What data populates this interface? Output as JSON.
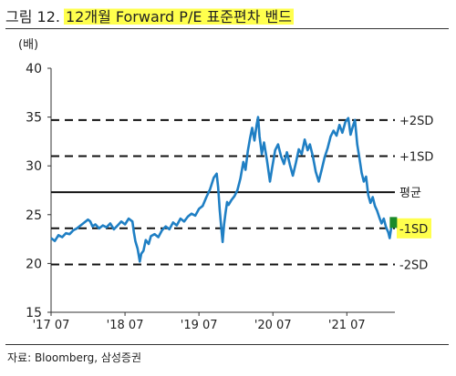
{
  "figure": {
    "prefix": "그림 12.",
    "title": "12개월 Forward P/E 표준편차 밴드",
    "unit": "(배)",
    "source": "자료: Bloomberg, 삼성증권"
  },
  "chart_data": {
    "type": "line",
    "title": "12개월 Forward P/E 표준편차 밴드",
    "ylabel": "(배)",
    "xlabel": "",
    "ylim": [
      15,
      40
    ],
    "yticks": [
      15,
      20,
      25,
      30,
      35,
      40
    ],
    "xlim": [
      2017.5,
      2022.15
    ],
    "xticks": [
      {
        "x": 2017.5,
        "label": "'17 07"
      },
      {
        "x": 2018.5,
        "label": "'18 07"
      },
      {
        "x": 2019.5,
        "label": "'19 07"
      },
      {
        "x": 2020.5,
        "label": "'20 07"
      },
      {
        "x": 2021.5,
        "label": "'21 07"
      }
    ],
    "grid": false,
    "series": [
      {
        "color": "#1f7fc4",
        "points": [
          [
            2017.5,
            22.6
          ],
          [
            2017.55,
            22.3
          ],
          [
            2017.6,
            22.9
          ],
          [
            2017.65,
            22.7
          ],
          [
            2017.7,
            23.1
          ],
          [
            2017.75,
            23.0
          ],
          [
            2017.8,
            23.4
          ],
          [
            2017.85,
            23.6
          ],
          [
            2017.9,
            23.9
          ],
          [
            2017.95,
            24.2
          ],
          [
            2018.0,
            24.5
          ],
          [
            2018.03,
            24.3
          ],
          [
            2018.06,
            23.8
          ],
          [
            2018.1,
            24.0
          ],
          [
            2018.15,
            23.6
          ],
          [
            2018.2,
            23.9
          ],
          [
            2018.25,
            23.7
          ],
          [
            2018.3,
            24.1
          ],
          [
            2018.35,
            23.5
          ],
          [
            2018.4,
            23.9
          ],
          [
            2018.45,
            24.3
          ],
          [
            2018.5,
            24.0
          ],
          [
            2018.55,
            24.6
          ],
          [
            2018.6,
            24.3
          ],
          [
            2018.62,
            23.2
          ],
          [
            2018.64,
            22.3
          ],
          [
            2018.67,
            21.5
          ],
          [
            2018.7,
            20.2
          ],
          [
            2018.72,
            21.0
          ],
          [
            2018.75,
            21.3
          ],
          [
            2018.78,
            22.4
          ],
          [
            2018.82,
            22.0
          ],
          [
            2018.85,
            22.8
          ],
          [
            2018.9,
            23.0
          ],
          [
            2018.95,
            22.7
          ],
          [
            2019.0,
            23.4
          ],
          [
            2019.05,
            23.8
          ],
          [
            2019.1,
            23.5
          ],
          [
            2019.15,
            24.2
          ],
          [
            2019.2,
            23.9
          ],
          [
            2019.25,
            24.6
          ],
          [
            2019.3,
            24.3
          ],
          [
            2019.35,
            24.8
          ],
          [
            2019.4,
            25.1
          ],
          [
            2019.45,
            24.9
          ],
          [
            2019.5,
            25.6
          ],
          [
            2019.55,
            25.9
          ],
          [
            2019.6,
            26.8
          ],
          [
            2019.65,
            27.6
          ],
          [
            2019.7,
            28.8
          ],
          [
            2019.74,
            29.2
          ],
          [
            2019.76,
            27.8
          ],
          [
            2019.78,
            25.5
          ],
          [
            2019.8,
            23.8
          ],
          [
            2019.82,
            22.2
          ],
          [
            2019.84,
            24.0
          ],
          [
            2019.86,
            25.2
          ],
          [
            2019.88,
            26.3
          ],
          [
            2019.9,
            26.0
          ],
          [
            2019.94,
            26.5
          ],
          [
            2019.98,
            26.9
          ],
          [
            2020.02,
            27.5
          ],
          [
            2020.06,
            28.7
          ],
          [
            2020.1,
            30.4
          ],
          [
            2020.13,
            29.6
          ],
          [
            2020.16,
            31.5
          ],
          [
            2020.19,
            32.8
          ],
          [
            2020.22,
            33.9
          ],
          [
            2020.25,
            32.6
          ],
          [
            2020.28,
            34.2
          ],
          [
            2020.3,
            35.0
          ],
          [
            2020.32,
            33.0
          ],
          [
            2020.35,
            31.2
          ],
          [
            2020.38,
            32.4
          ],
          [
            2020.42,
            30.6
          ],
          [
            2020.46,
            28.4
          ],
          [
            2020.49,
            29.8
          ],
          [
            2020.53,
            31.6
          ],
          [
            2020.57,
            32.2
          ],
          [
            2020.61,
            31.0
          ],
          [
            2020.65,
            30.2
          ],
          [
            2020.69,
            31.4
          ],
          [
            2020.73,
            30.1
          ],
          [
            2020.77,
            29.0
          ],
          [
            2020.81,
            30.3
          ],
          [
            2020.85,
            31.7
          ],
          [
            2020.89,
            31.2
          ],
          [
            2020.93,
            32.7
          ],
          [
            2020.97,
            31.6
          ],
          [
            2021.0,
            32.2
          ],
          [
            2021.04,
            31.0
          ],
          [
            2021.08,
            29.4
          ],
          [
            2021.12,
            28.4
          ],
          [
            2021.16,
            29.6
          ],
          [
            2021.2,
            30.9
          ],
          [
            2021.24,
            31.8
          ],
          [
            2021.28,
            33.0
          ],
          [
            2021.32,
            33.6
          ],
          [
            2021.36,
            33.1
          ],
          [
            2021.4,
            34.2
          ],
          [
            2021.44,
            33.4
          ],
          [
            2021.48,
            34.5
          ],
          [
            2021.52,
            34.9
          ],
          [
            2021.55,
            33.2
          ],
          [
            2021.58,
            34.0
          ],
          [
            2021.61,
            34.7
          ],
          [
            2021.64,
            32.2
          ],
          [
            2021.67,
            30.8
          ],
          [
            2021.7,
            29.3
          ],
          [
            2021.73,
            28.4
          ],
          [
            2021.76,
            28.9
          ],
          [
            2021.79,
            27.0
          ],
          [
            2021.82,
            26.2
          ],
          [
            2021.85,
            26.8
          ],
          [
            2021.88,
            25.9
          ],
          [
            2021.91,
            25.4
          ],
          [
            2021.94,
            24.7
          ],
          [
            2021.97,
            24.1
          ],
          [
            2022.0,
            24.6
          ],
          [
            2022.03,
            23.7
          ],
          [
            2022.06,
            23.2
          ],
          [
            2022.08,
            22.6
          ],
          [
            2022.1,
            23.6
          ],
          [
            2022.12,
            24.2
          ],
          [
            2022.14,
            23.9
          ]
        ]
      }
    ],
    "bands": [
      {
        "label": "+2SD",
        "value": 34.7,
        "style": "dashed"
      },
      {
        "label": "+1SD",
        "value": 31.0,
        "style": "dashed"
      },
      {
        "label": "평균",
        "value": 27.3,
        "style": "solid"
      },
      {
        "label": "-1SD",
        "value": 23.6,
        "style": "dashed",
        "highlight": true
      },
      {
        "label": "-2SD",
        "value": 19.9,
        "style": "dashed"
      }
    ],
    "endpoint_marker": {
      "x": 2022.13,
      "y": 24.2,
      "color": "#1a8a2a"
    },
    "colors": {
      "line": "#1f7fc4",
      "band": "#111111",
      "highlight": "#ffff4d",
      "marker": "#1a8a2a",
      "axis": "#333333"
    }
  }
}
